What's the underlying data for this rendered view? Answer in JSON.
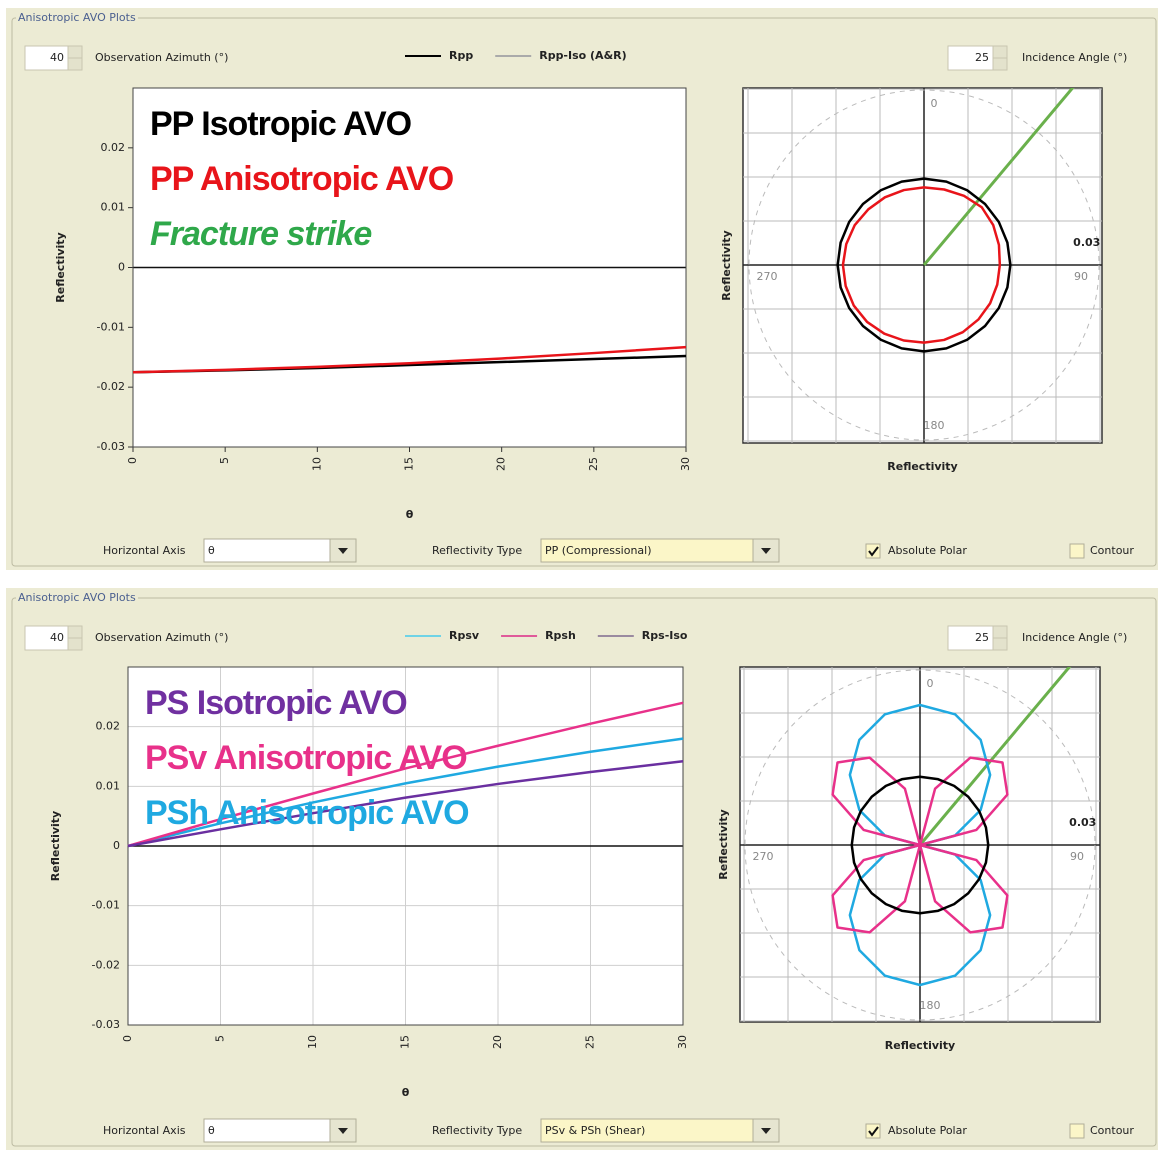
{
  "panels": [
    {
      "group_title": "Anisotropic AVO Plots",
      "azimuth": 40,
      "azimuth_label": "Observation Azimuth (°)",
      "incidence": 25,
      "incidence_label": "Incidence Angle (°)",
      "horizontal_axis_label": "Horizontal Axis",
      "horizontal_axis_value": "θ",
      "reflectivity_type_label": "Reflectivity Type",
      "reflectivity_type_value": "PP (Compressional)",
      "absolute_polar_label": "Absolute Polar",
      "absolute_polar": true,
      "contour_label": "Contour",
      "contour": false,
      "annotations": [
        {
          "text": "PP Isotropic AVO",
          "color": "#000000",
          "italic": false
        },
        {
          "text": "PP Anisotropic AVO",
          "color": "#e8141a",
          "italic": false
        },
        {
          "text": "Fracture strike",
          "color": "#2fa84a",
          "italic": true
        }
      ]
    },
    {
      "group_title": "Anisotropic AVO Plots",
      "azimuth": 40,
      "azimuth_label": "Observation Azimuth (°)",
      "incidence": 25,
      "incidence_label": "Incidence Angle (°)",
      "horizontal_axis_label": "Horizontal Axis",
      "horizontal_axis_value": "θ",
      "reflectivity_type_label": "Reflectivity Type",
      "reflectivity_type_value": "PSv & PSh (Shear)",
      "absolute_polar_label": "Absolute Polar",
      "absolute_polar": true,
      "contour_label": "Contour",
      "contour": false,
      "annotations": [
        {
          "text": "PS Isotropic AVO",
          "color": "#7030a0",
          "italic": false
        },
        {
          "text": "PSv Anisotropic AVO",
          "color": "#e8318a",
          "italic": false
        },
        {
          "text": "PSh Anisotropic AVO",
          "color": "#1fa9e1",
          "italic": false
        }
      ]
    }
  ],
  "chart_data": [
    {
      "type": "line",
      "x_label": "θ",
      "y_label": "Reflectivity",
      "x": [
        0,
        5,
        10,
        15,
        20,
        25,
        30
      ],
      "xlim": [
        0,
        30
      ],
      "xticks": [
        0,
        5,
        10,
        15,
        20,
        25,
        30
      ],
      "ylim": [
        -0.03,
        0.03
      ],
      "yticks": [
        0.02,
        0.01,
        0,
        -0.01,
        -0.02,
        -0.03
      ],
      "grid": false,
      "series": [
        {
          "name": "Rpp",
          "color": "#000000",
          "legend_color": "#000000",
          "values": [
            -0.0175,
            -0.0172,
            -0.0168,
            -0.0163,
            -0.0158,
            -0.0153,
            -0.0148
          ]
        },
        {
          "name": "Rpp-Iso (A&R)",
          "color": "#e8141a",
          "legend_color": "#aaaaaa",
          "values": [
            -0.0175,
            -0.0171,
            -0.0166,
            -0.016,
            -0.0152,
            -0.0143,
            -0.0133
          ]
        }
      ]
    },
    {
      "type": "polar",
      "x_label": "Reflectivity",
      "y_label": "Reflectivity",
      "angles": [
        0,
        15,
        30,
        45,
        60,
        75,
        90,
        105,
        120,
        135,
        150,
        165,
        180,
        195,
        210,
        225,
        240,
        255,
        270,
        285,
        300,
        315,
        330,
        345
      ],
      "rlim": [
        0,
        0.03
      ],
      "rticks": [
        0.03
      ],
      "angle_ticks": [
        0,
        90,
        180,
        270
      ],
      "series": [
        {
          "color": "#000000",
          "values": [
            0.0148,
            0.0148,
            0.0148,
            0.0148,
            0.0148,
            0.0148,
            0.0148,
            0.0148,
            0.0148,
            0.0148,
            0.0148,
            0.0148,
            0.0148,
            0.0148,
            0.0148,
            0.0148,
            0.0148,
            0.0148,
            0.0148,
            0.0148,
            0.0148,
            0.0148,
            0.0148,
            0.0148
          ]
        },
        {
          "color": "#e8141a",
          "values": [
            0.0133,
            0.0134,
            0.0137,
            0.014,
            0.0137,
            0.0133,
            0.013,
            0.013,
            0.0131,
            0.0132,
            0.0133,
            0.0133,
            0.0133,
            0.0134,
            0.0136,
            0.0138,
            0.0139,
            0.0139,
            0.0139,
            0.0138,
            0.0137,
            0.0135,
            0.0134,
            0.0133
          ]
        }
      ]
    },
    {
      "type": "line",
      "x_label": "θ",
      "y_label": "Reflectivity",
      "x": [
        0,
        5,
        10,
        15,
        20,
        25,
        30
      ],
      "xlim": [
        0,
        30
      ],
      "xticks": [
        0,
        5,
        10,
        15,
        20,
        25,
        30
      ],
      "ylim": [
        -0.03,
        0.03
      ],
      "yticks": [
        0.02,
        0.01,
        0,
        -0.01,
        -0.02,
        -0.03
      ],
      "grid": true,
      "series": [
        {
          "name": "Rpsv",
          "color": "#1fa9e1",
          "legend_color": "#6fd3e6",
          "values": [
            0,
            0.0038,
            0.0073,
            0.0105,
            0.0133,
            0.0158,
            0.018
          ]
        },
        {
          "name": "Rpsh",
          "color": "#e8318a",
          "legend_color": "#e05a9a",
          "values": [
            0,
            0.0045,
            0.0088,
            0.013,
            0.0168,
            0.0205,
            0.024
          ]
        },
        {
          "name": "Rps-Iso",
          "color": "#6a2fa0",
          "legend_color": "#9a8aa0",
          "values": [
            0,
            0.0028,
            0.0055,
            0.0081,
            0.0104,
            0.0124,
            0.0142
          ]
        }
      ]
    },
    {
      "type": "polar",
      "x_label": "Reflectivity",
      "y_label": "Reflectivity",
      "angles": [
        0,
        15,
        30,
        45,
        60,
        75,
        90,
        105,
        120,
        135,
        150,
        165,
        180,
        195,
        210,
        225,
        240,
        255,
        270,
        285,
        300,
        315,
        330,
        345
      ],
      "rlim": [
        0,
        0.03
      ],
      "rticks": [
        0.03
      ],
      "angle_ticks": [
        0,
        90,
        180,
        270
      ],
      "series": [
        {
          "color": "#1fa9e1",
          "values": [
            0.024,
            0.0232,
            0.0208,
            0.017,
            0.012,
            0.0062,
            0,
            0.0062,
            0.012,
            0.017,
            0.0208,
            0.0232,
            0.024,
            0.0232,
            0.0208,
            0.017,
            0.012,
            0.0062,
            0,
            0.0062,
            0.012,
            0.017,
            0.0208,
            0.0232
          ]
        },
        {
          "color": "#e8318a",
          "values": [
            0,
            0.01,
            0.0173,
            0.02,
            0.0173,
            0.01,
            0,
            0.01,
            0.0173,
            0.02,
            0.0173,
            0.01,
            0,
            0.01,
            0.0173,
            0.02,
            0.0173,
            0.01,
            0,
            0.01,
            0.0173,
            0.02,
            0.0173,
            0.01
          ]
        },
        {
          "color": "#000000",
          "values": [
            0.0117,
            0.0117,
            0.0117,
            0.0117,
            0.0117,
            0.0117,
            0.0117,
            0.0117,
            0.0117,
            0.0117,
            0.0117,
            0.0117,
            0.0117,
            0.0117,
            0.0117,
            0.0117,
            0.0117,
            0.0117,
            0.0117,
            0.0117,
            0.0117,
            0.0117,
            0.0117,
            0.0117
          ]
        }
      ]
    }
  ]
}
